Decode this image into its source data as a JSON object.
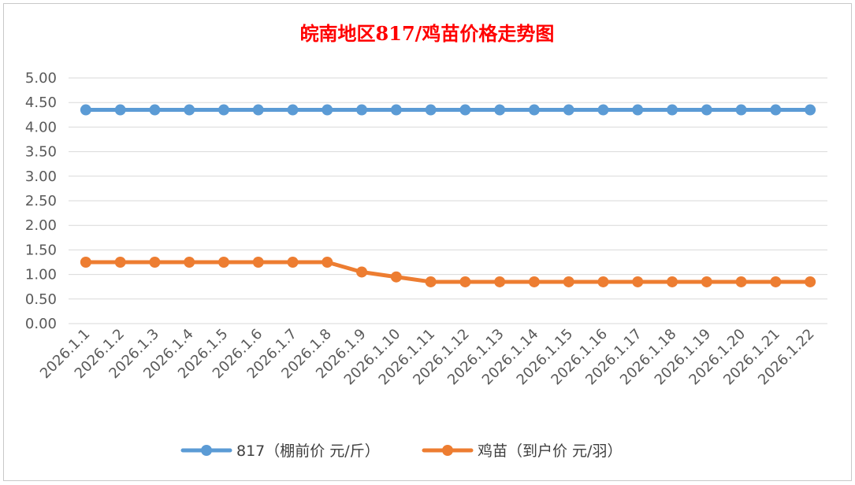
{
  "chart_data": {
    "type": "line",
    "title": "皖南地区817/鸡苗价格走势图",
    "xlabel": "",
    "ylabel": "",
    "ylim": [
      0,
      5
    ],
    "yticks": [
      "0.00",
      "0.50",
      "1.00",
      "1.50",
      "2.00",
      "2.50",
      "3.00",
      "3.50",
      "4.00",
      "4.50",
      "5.00"
    ],
    "grid": true,
    "legend_position": "bottom",
    "categories": [
      "2026.1.1",
      "2026.1.2",
      "2026.1.3",
      "2026.1.4",
      "2026.1.5",
      "2026.1.6",
      "2026.1.7",
      "2026.1.8",
      "2026.1.9",
      "2026.1.10",
      "2026.1.11",
      "2026.1.12",
      "2026.1.13",
      "2026.1.14",
      "2026.1.15",
      "2026.1.16",
      "2026.1.17",
      "2026.1.18",
      "2026.1.19",
      "2026.1.20",
      "2026.1.21",
      "2026.1.22"
    ],
    "series": [
      {
        "name": "817（棚前价 元/斤）",
        "color": "#5b9bd5",
        "values": [
          4.35,
          4.35,
          4.35,
          4.35,
          4.35,
          4.35,
          4.35,
          4.35,
          4.35,
          4.35,
          4.35,
          4.35,
          4.35,
          4.35,
          4.35,
          4.35,
          4.35,
          4.35,
          4.35,
          4.35,
          4.35,
          4.35
        ]
      },
      {
        "name": "鸡苗（到户价 元/羽）",
        "color": "#ed7d31",
        "values": [
          1.25,
          1.25,
          1.25,
          1.25,
          1.25,
          1.25,
          1.25,
          1.25,
          1.05,
          0.95,
          0.85,
          0.85,
          0.85,
          0.85,
          0.85,
          0.85,
          0.85,
          0.85,
          0.85,
          0.85,
          0.85,
          0.85
        ]
      }
    ]
  }
}
